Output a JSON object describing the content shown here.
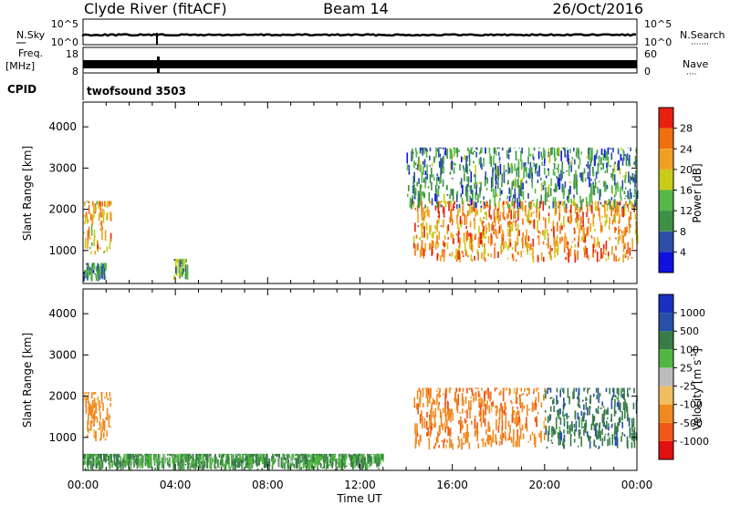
{
  "header": {
    "station": "Clyde River (fitACF)",
    "beam": "Beam 14",
    "date": "26/Oct/2016"
  },
  "top_panels": {
    "nsky_label": "N.Sky",
    "nsky_ticks": [
      "10^5",
      "10^0"
    ],
    "nsearch_label": "N.Search",
    "nsearch_ticks": [
      "10^5",
      "10^0"
    ],
    "freq_label": "Freq.",
    "freq_unit": "[MHz]",
    "freq_ticks": [
      "18",
      "8"
    ],
    "nave_label": "Nave",
    "nave_ticks": [
      "60",
      "0"
    ],
    "cpid_label": "CPID",
    "cpid_value": "twofsound 3503"
  },
  "x_axis": {
    "label": "Time UT",
    "ticks": [
      "00:00",
      "04:00",
      "08:00",
      "12:00",
      "16:00",
      "20:00",
      "00:00"
    ]
  },
  "colors": {
    "power": [
      "#1010e0",
      "#2c4ea8",
      "#3d9045",
      "#55b848",
      "#c8cc18",
      "#f0a020",
      "#f07010",
      "#e82010"
    ],
    "velocity": [
      "#e01010",
      "#f05818",
      "#f08a20",
      "#f0be60",
      "#bcbcbc",
      "#50b840",
      "#3a7c48",
      "#2850a8",
      "#1c2ec0"
    ]
  },
  "chart_data": [
    {
      "type": "heatmap",
      "ylabel": "Slant Range [km]",
      "y_ticks": [
        "1000",
        "2000",
        "3000",
        "4000"
      ],
      "ylim": [
        200,
        4600
      ],
      "xlim": [
        0,
        24
      ],
      "colorbar": {
        "label": "Power [dB]",
        "ticks": [
          "4",
          "8",
          "12",
          "16",
          "20",
          "24",
          "28"
        ],
        "range": [
          0,
          32
        ]
      },
      "echo_regions": [
        {
          "t_start": 0.0,
          "t_end": 1.2,
          "r_min": 900,
          "r_max": 2200,
          "value": 22
        },
        {
          "t_start": 0.0,
          "t_end": 1.0,
          "r_min": 250,
          "r_max": 700,
          "value": 10
        },
        {
          "t_start": 3.9,
          "t_end": 4.5,
          "r_min": 250,
          "r_max": 800,
          "value": 14
        },
        {
          "t_start": 14.3,
          "t_end": 24.0,
          "r_min": 700,
          "r_max": 2200,
          "value": 24
        },
        {
          "t_start": 14.0,
          "t_end": 24.0,
          "r_min": 2000,
          "r_max": 3500,
          "value": 10
        }
      ]
    },
    {
      "type": "heatmap",
      "ylabel": "Slant Range [km]",
      "y_ticks": [
        "1000",
        "2000",
        "3000",
        "4000"
      ],
      "ylim": [
        200,
        4600
      ],
      "xlim": [
        0,
        24
      ],
      "colorbar": {
        "label": "Velocity [m s^-1]",
        "ticks": [
          "-1000",
          "-500",
          "-100",
          "-25",
          "25",
          "100",
          "500",
          "1000"
        ],
        "range": [
          -1500,
          1500
        ]
      },
      "echo_regions": [
        {
          "t_start": 0.0,
          "t_end": 1.2,
          "r_min": 900,
          "r_max": 2100,
          "value": -200
        },
        {
          "t_start": 14.3,
          "t_end": 20.0,
          "r_min": 700,
          "r_max": 2200,
          "value": -300
        },
        {
          "t_start": 20.0,
          "t_end": 24.0,
          "r_min": 700,
          "r_max": 2200,
          "value": 300
        },
        {
          "t_start": 0.0,
          "t_end": 13.0,
          "r_min": 200,
          "r_max": 600,
          "value": 100
        }
      ]
    }
  ]
}
